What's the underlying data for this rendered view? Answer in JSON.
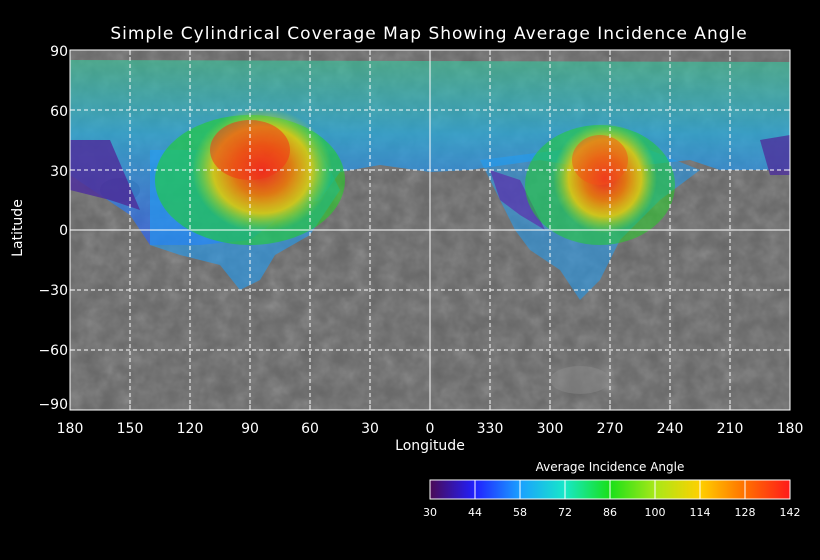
{
  "title": "Simple Cylindrical Coverage Map Showing Average Incidence Angle",
  "axes": {
    "xlabel": "Longitude",
    "ylabel": "Latitude",
    "x_ticks": [
      "180",
      "150",
      "120",
      "90",
      "60",
      "30",
      "0",
      "330",
      "300",
      "270",
      "240",
      "210",
      "180"
    ],
    "y_ticks": [
      "90",
      "60",
      "30",
      "0",
      "−30",
      "−60",
      "−90"
    ],
    "grid": true
  },
  "colorbar": {
    "title": "Average Incidence Angle",
    "ticks": [
      "30",
      "44",
      "58",
      "72",
      "86",
      "100",
      "114",
      "128",
      "142"
    ],
    "colors": [
      "#4b0a55",
      "#2020ff",
      "#1aa0ff",
      "#18e8c8",
      "#18e018",
      "#a8e818",
      "#ffd000",
      "#ff7000",
      "#ff1a1a"
    ]
  },
  "background": "grayscale surface mosaic",
  "coverage": {
    "hotspots": [
      {
        "center_lon": 80,
        "center_lat": 25,
        "peak_angle": 135
      },
      {
        "center_lon": 275,
        "center_lat": 20,
        "peak_angle": 130
      }
    ]
  }
}
